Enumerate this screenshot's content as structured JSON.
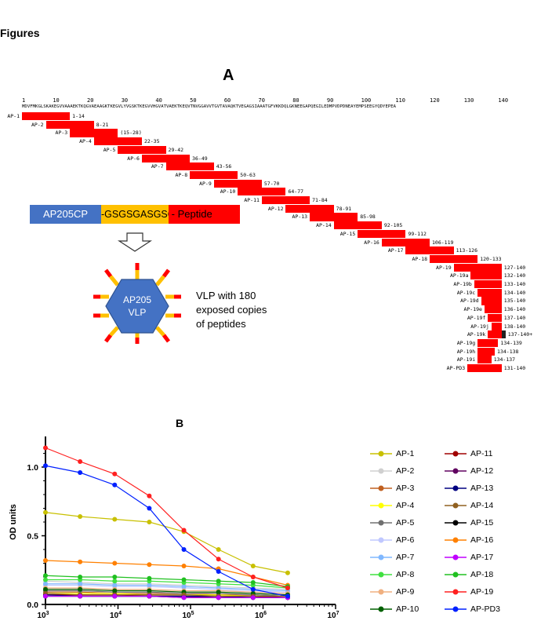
{
  "figure_heading": "Figures",
  "panel_a": {
    "label": "A",
    "positions": [
      "1",
      "10",
      "20",
      "30",
      "40",
      "50",
      "60",
      "70",
      "80",
      "90",
      "100",
      "110",
      "120",
      "130",
      "140"
    ],
    "sequence": "MDVFMKGLSKAKEGVVAAAEKTKQGVAEAAGKTKEGVLYVGSKTKEGVVHGVATVAEKTKEQVTNVGGAVVTGVTAVAQKTVEGAGSIAAATGFVKKDQLGKNEEGAPQEGILEDMPVDPDNEAYEMPSEEGYQDYEPEA",
    "fragments": [
      {
        "name": "AP-1",
        "range": "1-14",
        "start": 1,
        "end": 14
      },
      {
        "name": "AP-2",
        "range": "8-21",
        "start": 8,
        "end": 21
      },
      {
        "name": "AP-3",
        "range": "(15-28)",
        "start": 15,
        "end": 28
      },
      {
        "name": "AP-4",
        "range": "22-35",
        "start": 22,
        "end": 35
      },
      {
        "name": "AP-5",
        "range": "29-42",
        "start": 29,
        "end": 42
      },
      {
        "name": "AP-6",
        "range": "36-49",
        "start": 36,
        "end": 49
      },
      {
        "name": "AP-7",
        "range": "43-56",
        "start": 43,
        "end": 56
      },
      {
        "name": "AP-8",
        "range": "50-63",
        "start": 50,
        "end": 63
      },
      {
        "name": "AP-9",
        "range": "57-70",
        "start": 57,
        "end": 70
      },
      {
        "name": "AP-10",
        "range": "64-77",
        "start": 64,
        "end": 77
      },
      {
        "name": "AP-11",
        "range": "71-84",
        "start": 71,
        "end": 84
      },
      {
        "name": "AP-12",
        "range": "78-91",
        "start": 78,
        "end": 91
      },
      {
        "name": "AP-13",
        "range": "85-98",
        "start": 85,
        "end": 98
      },
      {
        "name": "AP-14",
        "range": "92-105",
        "start": 92,
        "end": 105
      },
      {
        "name": "AP-15",
        "range": "99-112",
        "start": 99,
        "end": 112
      },
      {
        "name": "AP-16",
        "range": "106-119",
        "start": 106,
        "end": 119
      },
      {
        "name": "AP-17",
        "range": "113-126",
        "start": 113,
        "end": 126
      },
      {
        "name": "AP-18",
        "range": "120-133",
        "start": 120,
        "end": 133
      },
      {
        "name": "AP-19",
        "range": "127-140",
        "start": 127,
        "end": 140
      },
      {
        "name": "AP-19a",
        "range": "132-140",
        "start": 132,
        "end": 140
      },
      {
        "name": "AP-19b",
        "range": "133-140",
        "start": 133,
        "end": 140
      },
      {
        "name": "AP-19c",
        "range": "134-140",
        "start": 134,
        "end": 140
      },
      {
        "name": "AP-19d",
        "range": "135-140",
        "start": 135,
        "end": 140
      },
      {
        "name": "AP-19e",
        "range": "136-140",
        "start": 136,
        "end": 140
      },
      {
        "name": "AP-19f",
        "range": "137-140",
        "start": 137,
        "end": 140
      },
      {
        "name": "AP-19j",
        "range": "138-140",
        "start": 138,
        "end": 140
      },
      {
        "name": "AP-19k",
        "range": "137-140+",
        "start": 137,
        "end": 140
      },
      {
        "name": "AP-19g",
        "range": "134-139",
        "start": 134,
        "end": 139
      },
      {
        "name": "AP-19h",
        "range": "134-138",
        "start": 134,
        "end": 138
      },
      {
        "name": "AP-19i",
        "range": "134-137",
        "start": 134,
        "end": 137
      },
      {
        "name": "AP-PD3",
        "range": "131-140",
        "start": 131,
        "end": 140
      }
    ],
    "construct": {
      "cp": "AP205CP",
      "dash1": "-",
      "linker": "GSGSGASGSG",
      "dash2": "-",
      "peptide": "Peptide"
    },
    "vlp_label": [
      "AP205",
      "VLP"
    ],
    "vlp_caption": "VLP with 180 exposed copies of peptides",
    "colors": {
      "red": "#ff0000",
      "blue": "#4472c4",
      "orange": "#ffc000"
    }
  },
  "panel_b": {
    "label": "B"
  },
  "chart_data": {
    "type": "line",
    "title": "B",
    "ylabel": "OD units",
    "xlabel": "",
    "x_scale": "log",
    "xlim": [
      1000,
      10000000
    ],
    "ylim": [
      0,
      1.2
    ],
    "yticks": [
      "0.0",
      "0.5",
      "1.0"
    ],
    "x": [
      1000,
      3000,
      9000,
      27000,
      81000,
      243000,
      729000,
      2187000
    ],
    "series": [
      {
        "name": "AP-1",
        "color": "#c8c000",
        "values": [
          0.67,
          0.64,
          0.62,
          0.6,
          0.53,
          0.4,
          0.28,
          0.23
        ]
      },
      {
        "name": "AP-2",
        "color": "#d0d0d0",
        "values": [
          0.17,
          0.16,
          0.15,
          0.15,
          0.14,
          0.13,
          0.12,
          0.11
        ]
      },
      {
        "name": "AP-3",
        "color": "#c06020",
        "values": [
          0.09,
          0.09,
          0.08,
          0.08,
          0.08,
          0.07,
          0.07,
          0.06
        ]
      },
      {
        "name": "AP-4",
        "color": "#ffff00",
        "values": [
          0.08,
          0.08,
          0.08,
          0.07,
          0.07,
          0.07,
          0.06,
          0.06
        ]
      },
      {
        "name": "AP-5",
        "color": "#707070",
        "values": [
          0.1,
          0.1,
          0.09,
          0.09,
          0.08,
          0.08,
          0.07,
          0.06
        ]
      },
      {
        "name": "AP-6",
        "color": "#c0c8ff",
        "values": [
          0.14,
          0.14,
          0.13,
          0.13,
          0.12,
          0.11,
          0.1,
          0.09
        ]
      },
      {
        "name": "AP-7",
        "color": "#80b8ff",
        "values": [
          0.15,
          0.15,
          0.14,
          0.14,
          0.13,
          0.12,
          0.11,
          0.1
        ]
      },
      {
        "name": "AP-8",
        "color": "#40e040",
        "values": [
          0.18,
          0.18,
          0.17,
          0.17,
          0.16,
          0.15,
          0.14,
          0.12
        ]
      },
      {
        "name": "AP-9",
        "color": "#f0b080",
        "values": [
          0.12,
          0.12,
          0.11,
          0.11,
          0.1,
          0.1,
          0.09,
          0.08
        ]
      },
      {
        "name": "AP-10",
        "color": "#006000",
        "values": [
          0.11,
          0.11,
          0.1,
          0.1,
          0.09,
          0.09,
          0.08,
          0.07
        ]
      },
      {
        "name": "AP-11",
        "color": "#a00000",
        "values": [
          0.07,
          0.07,
          0.07,
          0.06,
          0.06,
          0.06,
          0.06,
          0.05
        ]
      },
      {
        "name": "AP-12",
        "color": "#600060",
        "values": [
          0.06,
          0.06,
          0.06,
          0.06,
          0.06,
          0.05,
          0.05,
          0.05
        ]
      },
      {
        "name": "AP-13",
        "color": "#000080",
        "values": [
          0.07,
          0.06,
          0.06,
          0.06,
          0.06,
          0.06,
          0.05,
          0.05
        ]
      },
      {
        "name": "AP-14",
        "color": "#906020",
        "values": [
          0.08,
          0.07,
          0.07,
          0.07,
          0.07,
          0.06,
          0.06,
          0.06
        ]
      },
      {
        "name": "AP-15",
        "color": "#000000",
        "values": [
          0.06,
          0.06,
          0.06,
          0.06,
          0.05,
          0.05,
          0.05,
          0.05
        ]
      },
      {
        "name": "AP-16",
        "color": "#ff8000",
        "values": [
          0.32,
          0.31,
          0.3,
          0.29,
          0.28,
          0.26,
          0.2,
          0.14
        ]
      },
      {
        "name": "AP-17",
        "color": "#c000ff",
        "values": [
          0.06,
          0.06,
          0.06,
          0.06,
          0.05,
          0.05,
          0.05,
          0.05
        ]
      },
      {
        "name": "AP-18",
        "color": "#20c020",
        "values": [
          0.21,
          0.2,
          0.2,
          0.19,
          0.18,
          0.17,
          0.16,
          0.13
        ]
      },
      {
        "name": "AP-19",
        "color": "#ff2020",
        "values": [
          1.14,
          1.04,
          0.95,
          0.79,
          0.54,
          0.33,
          0.2,
          0.12
        ]
      },
      {
        "name": "AP-PD3",
        "color": "#0020ff",
        "values": [
          1.01,
          0.96,
          0.87,
          0.7,
          0.4,
          0.24,
          0.11,
          0.06
        ]
      }
    ],
    "legend_placement": "right"
  }
}
